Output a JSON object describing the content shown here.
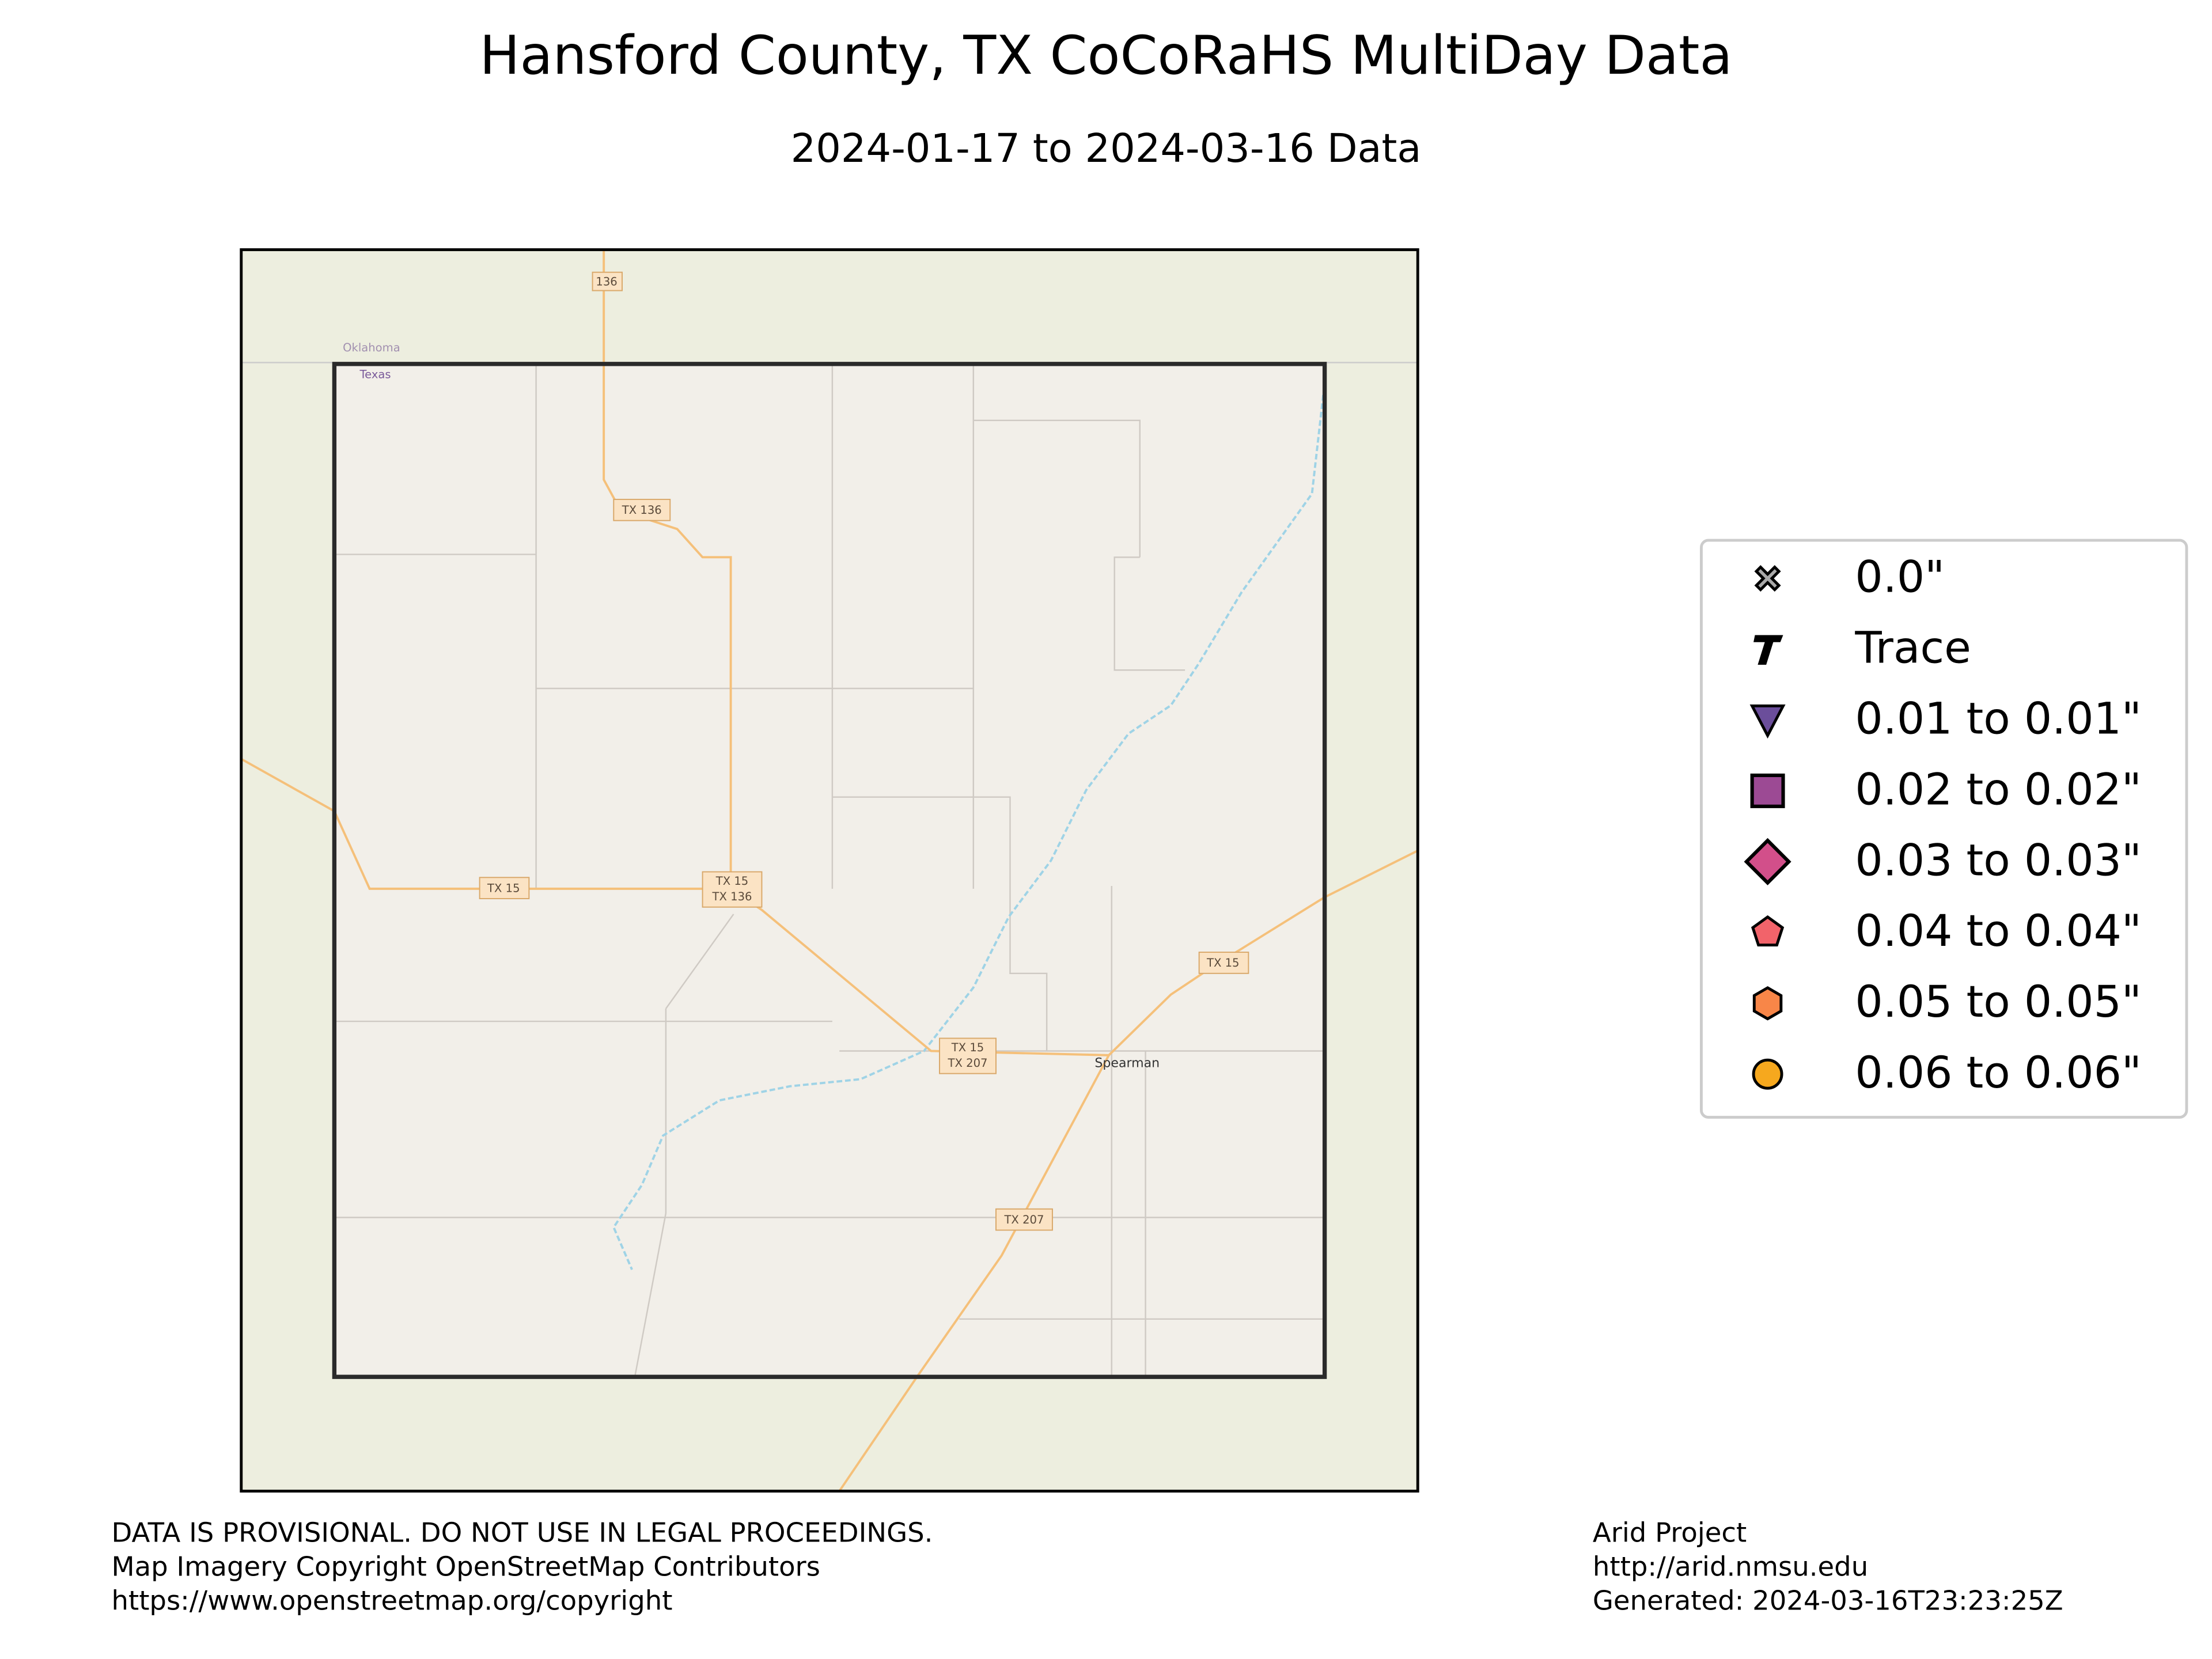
{
  "title": "Hansford County, TX CoCoRaHS MultiDay Data",
  "subtitle": "2024-01-17 to 2024-03-16 Data",
  "map": {
    "labels": [
      "136",
      "Oklahoma",
      "Texas",
      "TX 136",
      "TX 15",
      "TX 15",
      "TX 136",
      "TX 15",
      "TX 15",
      "TX 207",
      "Spearman",
      "TX 207"
    ]
  },
  "legend": {
    "items": [
      {
        "label": "0.0\"",
        "color": "#aaaaaa"
      },
      {
        "label": "Trace",
        "color": "#000000"
      },
      {
        "label": "0.01 to 0.01\"",
        "color": "#6b4e9b"
      },
      {
        "label": "0.02 to 0.02\"",
        "color": "#9c4a94"
      },
      {
        "label": "0.03 to 0.03\"",
        "color": "#d24f8a"
      },
      {
        "label": "0.04 to 0.04\"",
        "color": "#f2636a"
      },
      {
        "label": "0.05 to 0.05\"",
        "color": "#f88648"
      },
      {
        "label": "0.06 to 0.06\"",
        "color": "#f6a81e"
      }
    ]
  },
  "footer": {
    "left": [
      "DATA IS PROVISIONAL. DO NOT USE IN LEGAL PROCEEDINGS.",
      "Map Imagery Copyright OpenStreetMap Contributors",
      "https://www.openstreetmap.org/copyright"
    ],
    "right": [
      "Arid Project",
      "http://arid.nmsu.edu",
      "Generated: 2024-03-16T23:23:25Z"
    ]
  }
}
